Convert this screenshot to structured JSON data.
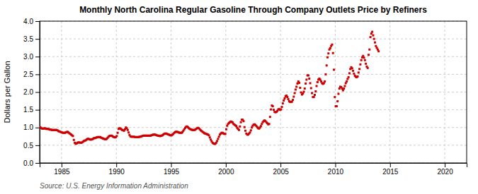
{
  "chart_data": {
    "type": "scatter",
    "title": "Monthly North Carolina Regular Gasoline Through Company Outlets Price by Refiners",
    "ylabel": "Dollars per Gallon",
    "source": "Source: U.S. Energy Information Administration",
    "color": "#cc0000",
    "marker": "square",
    "grid": true,
    "xlim": [
      1983,
      2022
    ],
    "ylim": [
      0.0,
      4.0
    ],
    "xticks": [
      1985,
      1990,
      1995,
      2000,
      2005,
      2010,
      2015,
      2020
    ],
    "yticks": [
      {
        "value": 0.0,
        "label": "0.0"
      },
      0.5,
      {
        "value": 1.0,
        "label": "1.0"
      },
      1.5,
      {
        "value": 2.0,
        "label": "2.0"
      },
      2.5,
      {
        "value": 3.0,
        "label": "3.0"
      },
      3.5,
      {
        "value": 4.0,
        "label": "4.0"
      }
    ],
    "x": [
      1983.0417,
      1983.125,
      1983.2083,
      1983.2917,
      1983.375,
      1983.4583,
      1983.5417,
      1983.625,
      1983.7083,
      1983.7917,
      1983.875,
      1983.9583,
      1984.0417,
      1984.125,
      1984.2083,
      1984.2917,
      1984.375,
      1984.4583,
      1984.5417,
      1984.625,
      1984.7083,
      1984.7917,
      1984.875,
      1984.9583,
      1985.0417,
      1985.125,
      1985.2083,
      1985.2917,
      1985.375,
      1985.4583,
      1985.5417,
      1985.625,
      1985.7083,
      1985.7917,
      1985.875,
      1985.9583,
      1986.0417,
      1986.125,
      1986.2083,
      1986.2917,
      1986.375,
      1986.4583,
      1986.5417,
      1986.625,
      1986.7083,
      1986.7917,
      1986.875,
      1986.9583,
      1987.0417,
      1987.125,
      1987.2083,
      1987.2917,
      1987.375,
      1987.4583,
      1987.5417,
      1987.625,
      1987.7083,
      1987.7917,
      1987.875,
      1987.9583,
      1988.0417,
      1988.125,
      1988.2083,
      1988.2917,
      1988.375,
      1988.4583,
      1988.5417,
      1988.625,
      1988.7083,
      1988.7917,
      1988.875,
      1988.9583,
      1989.0417,
      1989.125,
      1989.2083,
      1989.2917,
      1989.375,
      1989.4583,
      1989.5417,
      1989.625,
      1989.7083,
      1989.7917,
      1989.875,
      1989.9583,
      1990.0417,
      1990.125,
      1990.2083,
      1990.2917,
      1990.375,
      1990.4583,
      1990.5417,
      1990.625,
      1990.7083,
      1990.7917,
      1990.875,
      1990.9583,
      1991.0417,
      1991.125,
      1991.2083,
      1991.2917,
      1991.375,
      1991.4583,
      1991.5417,
      1991.625,
      1991.7083,
      1991.7917,
      1991.875,
      1991.9583,
      1992.0417,
      1992.125,
      1992.2083,
      1992.2917,
      1992.375,
      1992.4583,
      1992.5417,
      1992.625,
      1992.7083,
      1992.7917,
      1992.875,
      1992.9583,
      1993.0417,
      1993.125,
      1993.2083,
      1993.2917,
      1993.375,
      1993.4583,
      1993.5417,
      1993.625,
      1993.7083,
      1993.7917,
      1993.875,
      1993.9583,
      1994.0417,
      1994.125,
      1994.2083,
      1994.2917,
      1994.375,
      1994.4583,
      1994.5417,
      1994.625,
      1994.7083,
      1994.7917,
      1994.875,
      1994.9583,
      1995.0417,
      1995.125,
      1995.2083,
      1995.2917,
      1995.375,
      1995.4583,
      1995.5417,
      1995.625,
      1995.7083,
      1995.7917,
      1995.875,
      1995.9583,
      1996.0417,
      1996.125,
      1996.2083,
      1996.2917,
      1996.375,
      1996.4583,
      1996.5417,
      1996.625,
      1996.7083,
      1996.7917,
      1996.875,
      1996.9583,
      1997.0417,
      1997.125,
      1997.2083,
      1997.2917,
      1997.375,
      1997.4583,
      1997.5417,
      1997.625,
      1997.7083,
      1997.7917,
      1997.875,
      1997.9583,
      1998.0417,
      1998.125,
      1998.2083,
      1998.2917,
      1998.375,
      1998.4583,
      1998.5417,
      1998.625,
      1998.7083,
      1998.7917,
      1998.875,
      1998.9583,
      1999.0417,
      1999.125,
      1999.2083,
      1999.2917,
      1999.375,
      1999.4583,
      1999.5417,
      1999.625,
      1999.7083,
      1999.7917,
      1999.875,
      1999.9583,
      2000.0417,
      2000.125,
      2000.2083,
      2000.2917,
      2000.375,
      2000.4583,
      2000.5417,
      2000.625,
      2000.7083,
      2000.7917,
      2000.875,
      2000.9583,
      2001.0417,
      2001.125,
      2001.2083,
      2001.2917,
      2001.375,
      2001.4583,
      2001.5417,
      2001.625,
      2001.7083,
      2001.7917,
      2001.875,
      2001.9583,
      2002.0417,
      2002.125,
      2002.2083,
      2002.2917,
      2002.375,
      2002.4583,
      2002.5417,
      2002.625,
      2002.7083,
      2002.7917,
      2002.875,
      2002.9583,
      2003.0417,
      2003.125,
      2003.2083,
      2003.2917,
      2003.375,
      2003.4583,
      2003.5417,
      2003.625,
      2003.7083,
      2003.7917,
      2003.875,
      2003.9583,
      2004.0417,
      2004.125,
      2004.2083,
      2004.2917,
      2004.375,
      2004.4583,
      2004.5417,
      2004.625,
      2004.7083,
      2004.7917,
      2004.875,
      2004.9583,
      2005.0417,
      2005.125,
      2005.2083,
      2005.2917,
      2005.375,
      2005.4583,
      2005.5417,
      2005.625,
      2005.7083,
      2005.7917,
      2005.875,
      2005.9583,
      2006.0417,
      2006.125,
      2006.2083,
      2006.2917,
      2006.375,
      2006.4583,
      2006.5417,
      2006.625,
      2006.7083,
      2006.7917,
      2006.875,
      2006.9583,
      2007.0417,
      2007.125,
      2007.2083,
      2007.2917,
      2007.375,
      2007.4583,
      2007.5417,
      2007.625,
      2007.7083,
      2007.7917,
      2007.875,
      2007.9583,
      2008.0417,
      2008.125,
      2008.2083,
      2008.2917,
      2008.375,
      2008.4583,
      2008.5417,
      2008.625,
      2008.7083,
      2008.7917,
      2008.875,
      2008.9583,
      2009.0417,
      2009.125,
      2009.2083,
      2009.2917,
      2009.375,
      2009.4583,
      2009.5417,
      2009.625,
      2009.7083,
      2009.7917,
      2009.875,
      2009.9583,
      2010.0417,
      2010.125,
      2010.2083,
      2010.2917,
      2010.375,
      2010.4583,
      2010.5417,
      2010.625,
      2010.7083,
      2010.7917,
      2010.875,
      2010.9583,
      2011.0417,
      2011.125,
      2011.2083,
      2011.2917,
      2011.375,
      2011.4583,
      2011.5417,
      2011.625,
      2011.7083,
      2011.7917,
      2011.875,
      2011.9583,
      2012.0417,
      2012.125,
      2012.2083,
      2012.2917,
      2012.375,
      2012.4583,
      2012.5417,
      2012.625,
      2012.7083,
      2012.7917,
      2012.875,
      2012.9583,
      2013.0417,
      2013.125,
      2013.2083,
      2013.2917,
      2013.375,
      2013.4583,
      2013.5417,
      2013.625,
      2013.7083,
      2013.7917,
      2013.875,
      2013.9583
    ],
    "values": [
      1.01,
      0.99,
      0.97,
      0.97,
      0.97,
      0.98,
      0.97,
      0.96,
      0.96,
      0.96,
      0.95,
      0.94,
      0.94,
      0.93,
      0.93,
      0.93,
      0.93,
      0.93,
      0.93,
      0.92,
      0.9,
      0.89,
      0.88,
      0.87,
      0.86,
      0.85,
      0.85,
      0.85,
      0.86,
      0.87,
      0.88,
      0.86,
      0.84,
      0.82,
      0.8,
      0.78,
      0.76,
      0.65,
      0.57,
      0.54,
      0.55,
      0.57,
      0.58,
      0.58,
      0.57,
      0.57,
      0.58,
      0.6,
      0.62,
      0.63,
      0.64,
      0.66,
      0.68,
      0.68,
      0.67,
      0.66,
      0.66,
      0.67,
      0.68,
      0.7,
      0.7,
      0.71,
      0.72,
      0.73,
      0.73,
      0.73,
      0.73,
      0.71,
      0.7,
      0.69,
      0.68,
      0.67,
      0.67,
      0.68,
      0.71,
      0.74,
      0.76,
      0.77,
      0.77,
      0.76,
      0.74,
      0.73,
      0.72,
      0.73,
      0.76,
      0.85,
      0.96,
      0.98,
      0.97,
      0.95,
      0.93,
      0.92,
      0.91,
      0.95,
      1.0,
      0.98,
      0.93,
      0.86,
      0.79,
      0.75,
      0.74,
      0.74,
      0.74,
      0.74,
      0.73,
      0.73,
      0.73,
      0.73,
      0.73,
      0.74,
      0.74,
      0.75,
      0.76,
      0.77,
      0.77,
      0.77,
      0.77,
      0.77,
      0.77,
      0.77,
      0.77,
      0.77,
      0.78,
      0.79,
      0.8,
      0.8,
      0.8,
      0.79,
      0.78,
      0.77,
      0.77,
      0.76,
      0.76,
      0.77,
      0.78,
      0.8,
      0.82,
      0.83,
      0.83,
      0.82,
      0.81,
      0.8,
      0.79,
      0.78,
      0.78,
      0.8,
      0.82,
      0.85,
      0.87,
      0.88,
      0.88,
      0.87,
      0.86,
      0.85,
      0.85,
      0.85,
      0.87,
      0.91,
      0.95,
      0.99,
      1.02,
      1.03,
      1.01,
      0.98,
      0.96,
      0.95,
      0.94,
      0.93,
      0.93,
      0.93,
      0.94,
      0.96,
      0.98,
      0.99,
      0.98,
      0.95,
      0.92,
      0.9,
      0.88,
      0.86,
      0.84,
      0.83,
      0.82,
      0.81,
      0.8,
      0.78,
      0.72,
      0.66,
      0.61,
      0.57,
      0.55,
      0.54,
      0.54,
      0.57,
      0.62,
      0.68,
      0.74,
      0.8,
      0.83,
      0.85,
      0.85,
      0.83,
      0.82,
      0.82,
      0.95,
      1.05,
      1.1,
      1.13,
      1.15,
      1.17,
      1.16,
      1.14,
      1.1,
      1.08,
      1.06,
      1.04,
      0.99,
      0.96,
      0.93,
      1.03,
      1.15,
      1.22,
      1.22,
      1.18,
      1.01,
      0.91,
      0.83,
      0.8,
      0.8,
      0.83,
      0.86,
      0.92,
      1.0,
      1.05,
      1.08,
      1.09,
      1.07,
      1.04,
      1.01,
      0.98,
      0.97,
      1.0,
      1.04,
      1.1,
      1.15,
      1.18,
      1.2,
      1.18,
      1.15,
      1.12,
      1.09,
      1.1,
      1.3,
      1.51,
      1.62,
      1.6,
      1.5,
      1.44,
      1.43,
      1.44,
      1.47,
      1.51,
      1.52,
      1.5,
      1.51,
      1.58,
      1.68,
      1.76,
      1.82,
      1.88,
      1.9,
      1.86,
      1.8,
      1.74,
      1.72,
      1.72,
      1.73,
      1.78,
      1.87,
      1.97,
      2.07,
      2.15,
      2.24,
      2.3,
      2.26,
      2.12,
      1.99,
      1.93,
      1.96,
      2.01,
      2.1,
      2.24,
      2.35,
      2.47,
      2.47,
      2.38,
      2.25,
      2.11,
      1.97,
      1.86,
      1.86,
      1.92,
      2.02,
      2.17,
      2.28,
      2.35,
      2.38,
      2.35,
      2.3,
      2.25,
      2.23,
      2.25,
      2.3,
      2.5,
      2.75,
      2.98,
      3.09,
      3.2,
      3.24,
      3.3,
      3.34,
      3.1,
      2.63,
      1.86,
      1.6,
      1.6,
      1.74,
      1.95,
      2.1,
      2.15,
      2.14,
      2.1,
      2.05,
      2.1,
      2.17,
      2.25,
      2.3,
      2.37,
      2.42,
      2.53,
      2.65,
      2.7,
      2.67,
      2.6,
      2.52,
      2.46,
      2.43,
      2.42,
      2.44,
      2.55,
      2.65,
      2.78,
      2.9,
      2.98,
      3.02,
      2.97,
      2.9,
      2.8,
      2.72,
      2.68,
      3.05,
      3.2,
      3.55,
      3.65,
      3.7,
      3.6,
      3.5,
      3.4,
      3.3,
      3.25,
      3.2,
      3.15
    ]
  }
}
